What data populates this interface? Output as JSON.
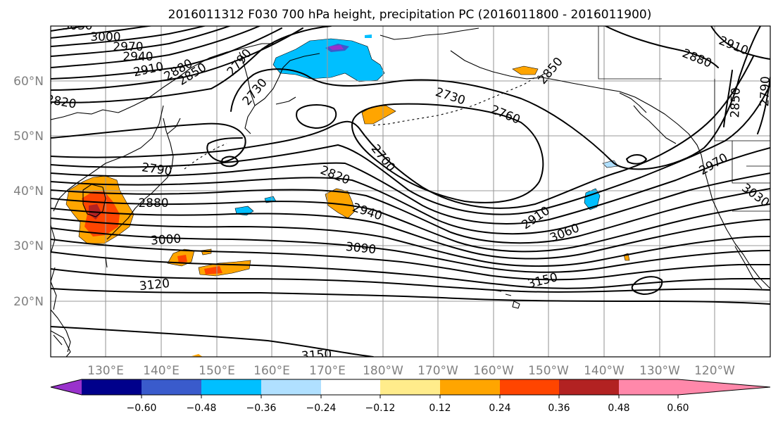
{
  "title": "2016011312 F030 700 hPa height, precipitation PC (2016011800 - 2016011900)",
  "lat_labels": [
    "60°N",
    "50°N",
    "40°N",
    "30°N",
    "20°N"
  ],
  "lon_labels": [
    "130°E",
    "140°E",
    "150°E",
    "160°E",
    "170°E",
    "180°W",
    "170°W",
    "160°W",
    "150°W",
    "140°W",
    "130°W",
    "120°W"
  ],
  "contour_labels": [
    "3030",
    "3000",
    "2970",
    "2940",
    "2910",
    "2880",
    "2850",
    "2820",
    "2790",
    "2730",
    "2730",
    "2760",
    "2700",
    "2850",
    "2880",
    "2910",
    "2850",
    "2790",
    "2790",
    "2880",
    "2820",
    "2940",
    "3000",
    "3090",
    "3120",
    "2910",
    "3060",
    "3150",
    "2970",
    "3030",
    "3150"
  ],
  "colorbar": {
    "colors": [
      "#9932cc",
      "#00008b",
      "#3a5bcc",
      "#00bfff",
      "#b0e0ff",
      "#ffffff",
      "#ffec8b",
      "#ffa500",
      "#ff4500",
      "#b22222",
      "#ff88aa"
    ],
    "tick_labels": [
      "−0.60",
      "−0.48",
      "−0.36",
      "−0.24",
      "−0.12",
      "0.12",
      "0.24",
      "0.36",
      "0.48",
      "0.60"
    ]
  },
  "chart_data": {
    "type": "map",
    "title": "2016011312 F030 700 hPa height, precipitation PC (2016011800 - 2016011900)",
    "region": {
      "lon_range": [
        "120°E",
        "115°W"
      ],
      "lat_range": [
        "10°N",
        "70°N"
      ]
    },
    "contours": {
      "field": "700 hPa height",
      "interval": 30,
      "levels_labeled": [
        2700,
        2730,
        2760,
        2790,
        2820,
        2850,
        2880,
        2910,
        2940,
        2970,
        3000,
        3030,
        3060,
        3090,
        3120,
        3150
      ]
    },
    "shading": {
      "field": "precipitation PC",
      "levels": [
        -0.6,
        -0.48,
        -0.36,
        -0.24,
        -0.12,
        0.12,
        0.24,
        0.36,
        0.48,
        0.6
      ]
    },
    "grid": true
  }
}
